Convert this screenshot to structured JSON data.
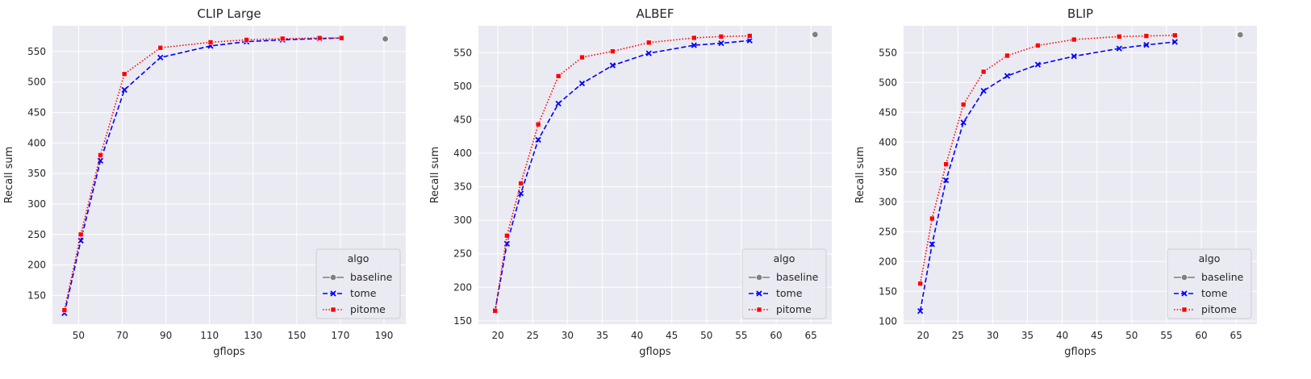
{
  "colors": {
    "background": "#eaeaf2",
    "grid": "#ffffff",
    "baseline": "#808080",
    "tome": "#0000ff",
    "pitome": "#ff0000"
  },
  "legend": {
    "title": "algo",
    "placement": "lower-right"
  },
  "chart_data": [
    {
      "type": "line",
      "title": "CLIP Large",
      "xlabel": "gflops",
      "ylabel": "Recall sum",
      "xlim": [
        38,
        200
      ],
      "ylim": [
        103,
        592
      ],
      "xticks": [
        50,
        70,
        90,
        110,
        130,
        150,
        170,
        190
      ],
      "yticks": [
        150,
        200,
        250,
        300,
        350,
        400,
        450,
        500,
        550
      ],
      "grid": true,
      "series": [
        {
          "name": "baseline",
          "style": "solid",
          "marker": "circle",
          "x": [
            190.6
          ],
          "y": [
            570.5
          ]
        },
        {
          "name": "tome",
          "style": "dashed",
          "marker": "x",
          "x": [
            43.5,
            51,
            60,
            71,
            87.5,
            110.5,
            127,
            143.5,
            160.5,
            170.5
          ],
          "y": [
            121,
            240,
            371,
            487,
            540,
            559,
            566,
            569,
            571,
            572
          ]
        },
        {
          "name": "pitome",
          "style": "dotted",
          "marker": "square",
          "x": [
            43.5,
            51,
            60,
            71,
            87.5,
            110.5,
            127,
            143.5,
            160.5,
            170.5
          ],
          "y": [
            126,
            250,
            380,
            513,
            556,
            565,
            569,
            571,
            572,
            572
          ]
        }
      ]
    },
    {
      "type": "line",
      "title": "ALBEF",
      "xlabel": "gflops",
      "ylabel": "Recall sum",
      "xlim": [
        17.2,
        68.0
      ],
      "ylim": [
        145,
        590
      ],
      "xticks": [
        20,
        25,
        30,
        35,
        40,
        45,
        50,
        55,
        60,
        65
      ],
      "yticks": [
        150,
        200,
        250,
        300,
        350,
        400,
        450,
        500,
        550
      ],
      "grid": true,
      "series": [
        {
          "name": "baseline",
          "style": "solid",
          "marker": "circle",
          "x": [
            65.6
          ],
          "y": [
            577
          ]
        },
        {
          "name": "tome",
          "style": "dashed",
          "marker": "x",
          "x": [
            19.6,
            21.3,
            23.3,
            25.8,
            28.7,
            32.1,
            36.5,
            41.7,
            48.2,
            52.1,
            56.2
          ],
          "y": [
            165,
            265,
            340,
            420,
            474,
            504,
            531,
            549,
            561,
            564,
            568
          ]
        },
        {
          "name": "pitome",
          "style": "dotted",
          "marker": "square",
          "x": [
            19.6,
            21.3,
            23.3,
            25.8,
            28.7,
            32.1,
            36.5,
            41.7,
            48.2,
            52.1,
            56.2
          ],
          "y": [
            165,
            277,
            355,
            443,
            515,
            543,
            552,
            565,
            572,
            574,
            575
          ]
        }
      ]
    },
    {
      "type": "line",
      "title": "BLIP",
      "xlabel": "gflops",
      "ylabel": "Recall sum",
      "xlim": [
        17.2,
        68.0
      ],
      "ylim": [
        95,
        595
      ],
      "xticks": [
        20,
        25,
        30,
        35,
        40,
        45,
        50,
        55,
        60,
        65
      ],
      "yticks": [
        100,
        150,
        200,
        250,
        300,
        350,
        400,
        450,
        500,
        550
      ],
      "grid": true,
      "series": [
        {
          "name": "baseline",
          "style": "solid",
          "marker": "circle",
          "x": [
            65.6
          ],
          "y": [
            580
          ]
        },
        {
          "name": "tome",
          "style": "dashed",
          "marker": "x",
          "x": [
            19.6,
            21.3,
            23.3,
            25.8,
            28.7,
            32.1,
            36.5,
            41.7,
            48.2,
            52.1,
            56.2
          ],
          "y": [
            117,
            229,
            336,
            433,
            486,
            511,
            530,
            544,
            557,
            563,
            568
          ]
        },
        {
          "name": "pitome",
          "style": "dotted",
          "marker": "square",
          "x": [
            19.6,
            21.3,
            23.3,
            25.8,
            28.7,
            32.1,
            36.5,
            41.7,
            48.2,
            52.1,
            56.2
          ],
          "y": [
            163,
            272,
            363,
            463,
            518,
            545,
            562,
            572,
            577,
            578,
            579
          ]
        }
      ]
    }
  ]
}
